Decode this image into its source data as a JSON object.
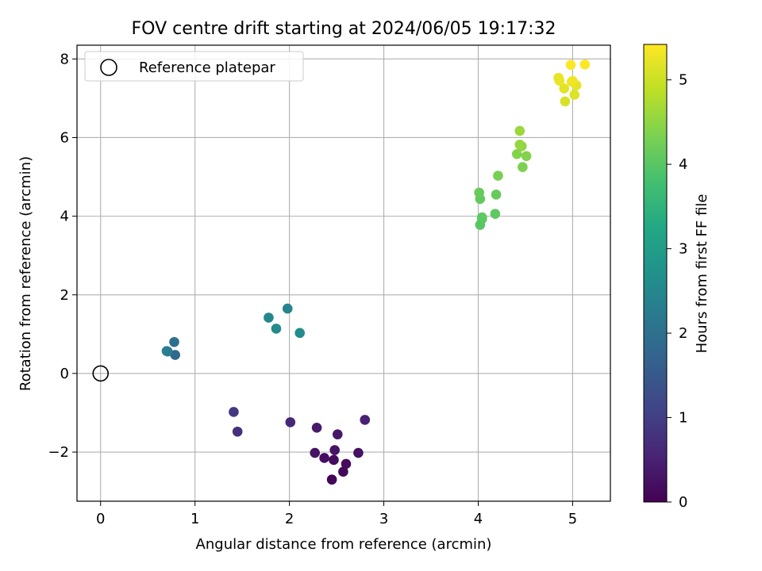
{
  "chart_data": {
    "type": "scatter",
    "title": "FOV centre drift starting at 2024/06/05 19:17:32",
    "xlabel": "Angular distance from reference (arcmin)",
    "ylabel": "Rotation from reference (arcmin)",
    "xlim": [
      -0.25,
      5.4
    ],
    "ylim": [
      -3.25,
      8.35
    ],
    "xticks": [
      0,
      1,
      2,
      3,
      4,
      5
    ],
    "xtick_labels": [
      "0",
      "1",
      "2",
      "3",
      "4",
      "5"
    ],
    "yticks": [
      -2,
      0,
      2,
      4,
      6,
      8
    ],
    "ytick_labels": [
      "−2",
      "0",
      "2",
      "4",
      "6",
      "8"
    ],
    "grid": true,
    "legend": {
      "position": "top-left",
      "entries": [
        "Reference platepar"
      ]
    },
    "reference_point": {
      "x": 0,
      "y": 0,
      "label": "Reference platepar"
    },
    "colorbar": {
      "label": "Hours from first FF file",
      "range": [
        0,
        5.42
      ],
      "ticks": [
        0,
        1,
        2,
        3,
        4,
        5
      ],
      "tick_labels": [
        "0",
        "1",
        "2",
        "3",
        "4",
        "5"
      ],
      "colormap": "viridis"
    },
    "points": [
      {
        "x": 2.45,
        "y": -2.7,
        "c": 0.05
      },
      {
        "x": 2.57,
        "y": -2.5,
        "c": 0.1
      },
      {
        "x": 2.6,
        "y": -2.3,
        "c": 0.15
      },
      {
        "x": 2.47,
        "y": -2.2,
        "c": 0.15
      },
      {
        "x": 2.37,
        "y": -2.15,
        "c": 0.2
      },
      {
        "x": 2.48,
        "y": -1.95,
        "c": 0.3
      },
      {
        "x": 2.27,
        "y": -2.02,
        "c": 0.25
      },
      {
        "x": 2.73,
        "y": -2.02,
        "c": 0.25
      },
      {
        "x": 2.51,
        "y": -1.55,
        "c": 0.35
      },
      {
        "x": 2.29,
        "y": -1.38,
        "c": 0.4
      },
      {
        "x": 2.8,
        "y": -1.18,
        "c": 0.5
      },
      {
        "x": 2.01,
        "y": -1.24,
        "c": 0.6
      },
      {
        "x": 1.45,
        "y": -1.48,
        "c": 0.75
      },
      {
        "x": 1.41,
        "y": -0.98,
        "c": 0.9
      },
      {
        "x": 0.79,
        "y": 0.47,
        "c": 1.85
      },
      {
        "x": 0.78,
        "y": 0.8,
        "c": 2.0
      },
      {
        "x": 0.7,
        "y": 0.57,
        "c": 2.25
      },
      {
        "x": 0.71,
        "y": 0.56,
        "c": 2.3
      },
      {
        "x": 1.98,
        "y": 1.65,
        "c": 2.45
      },
      {
        "x": 1.78,
        "y": 1.42,
        "c": 2.5
      },
      {
        "x": 1.86,
        "y": 1.14,
        "c": 2.55
      },
      {
        "x": 2.11,
        "y": 1.03,
        "c": 2.6
      },
      {
        "x": 4.02,
        "y": 3.78,
        "c": 4.0
      },
      {
        "x": 4.04,
        "y": 3.93,
        "c": 4.0
      },
      {
        "x": 4.04,
        "y": 3.97,
        "c": 4.05
      },
      {
        "x": 4.18,
        "y": 4.06,
        "c": 4.05
      },
      {
        "x": 4.02,
        "y": 4.44,
        "c": 4.1
      },
      {
        "x": 4.01,
        "y": 4.6,
        "c": 4.15
      },
      {
        "x": 4.19,
        "y": 4.55,
        "c": 4.15
      },
      {
        "x": 4.21,
        "y": 5.03,
        "c": 4.3
      },
      {
        "x": 4.47,
        "y": 5.25,
        "c": 4.35
      },
      {
        "x": 4.51,
        "y": 5.53,
        "c": 4.4
      },
      {
        "x": 4.41,
        "y": 5.58,
        "c": 4.4
      },
      {
        "x": 4.46,
        "y": 5.78,
        "c": 4.5
      },
      {
        "x": 4.44,
        "y": 5.82,
        "c": 4.55
      },
      {
        "x": 4.44,
        "y": 6.17,
        "c": 4.6
      },
      {
        "x": 4.92,
        "y": 6.92,
        "c": 5.1
      },
      {
        "x": 5.02,
        "y": 7.09,
        "c": 5.15
      },
      {
        "x": 4.91,
        "y": 7.25,
        "c": 5.2
      },
      {
        "x": 5.04,
        "y": 7.33,
        "c": 5.2
      },
      {
        "x": 4.86,
        "y": 7.45,
        "c": 5.25
      },
      {
        "x": 4.85,
        "y": 7.52,
        "c": 5.25
      },
      {
        "x": 4.99,
        "y": 7.42,
        "c": 5.3
      },
      {
        "x": 5.0,
        "y": 7.44,
        "c": 5.3
      },
      {
        "x": 4.98,
        "y": 7.85,
        "c": 5.4
      },
      {
        "x": 5.13,
        "y": 7.86,
        "c": 5.4
      }
    ]
  }
}
